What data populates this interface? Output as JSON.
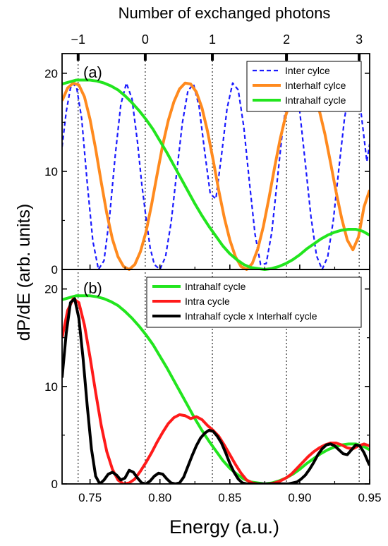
{
  "figure": {
    "top_axis_label": "Number of exchanged photons",
    "y_axis_label": "dP/dE (arb. units)",
    "x_axis_label": "Energy (a.u.)",
    "top_ticks": [
      {
        "label": "−1",
        "energy": 0.7415
      },
      {
        "label": "0",
        "energy": 0.7895
      },
      {
        "label": "1",
        "energy": 0.8375
      },
      {
        "label": "2",
        "energy": 0.8905
      },
      {
        "label": "3",
        "energy": 0.9425
      }
    ],
    "x_ticks": [
      "0.75",
      "0.80",
      "0.85",
      "0.90",
      "0.95"
    ],
    "y_ticks": [
      "0",
      "10",
      "20"
    ]
  },
  "chart_data": [
    {
      "type": "line",
      "panel_label": "(a)",
      "xlim": [
        0.73,
        0.95
      ],
      "ylim": [
        0,
        22
      ],
      "legend_placement": "top-right",
      "series": [
        {
          "name": "Inter cylce",
          "color": "#1a1aff",
          "style": "dashed",
          "x": [
            0.73,
            0.733,
            0.736,
            0.74,
            0.744,
            0.748,
            0.752,
            0.756,
            0.76,
            0.764,
            0.768,
            0.772,
            0.776,
            0.78,
            0.784,
            0.787,
            0.79,
            0.793,
            0.796,
            0.8,
            0.804,
            0.808,
            0.812,
            0.816,
            0.82,
            0.824,
            0.828,
            0.832,
            0.836,
            0.84,
            0.844,
            0.848,
            0.852,
            0.856,
            0.86,
            0.864,
            0.868,
            0.872,
            0.876,
            0.88,
            0.884,
            0.888,
            0.892,
            0.896,
            0.9,
            0.904,
            0.908,
            0.912,
            0.916,
            0.92,
            0.924,
            0.928,
            0.932,
            0.936,
            0.94,
            0.944,
            0.948,
            0.95
          ],
          "y": [
            12.5,
            16.1,
            18.5,
            18.9,
            15.4,
            8.8,
            2.9,
            0.0,
            0.9,
            5.4,
            11.6,
            16.8,
            19.0,
            17.4,
            12.9,
            8.7,
            5.3,
            2.2,
            0.5,
            0.0,
            1.3,
            4.8,
            9.9,
            14.9,
            18.2,
            18.9,
            16.6,
            12.0,
            7.7,
            7.2,
            11.6,
            16.4,
            19.0,
            18.3,
            14.5,
            8.9,
            3.6,
            0.5,
            0.6,
            3.8,
            9.2,
            14.6,
            18.3,
            18.9,
            16.1,
            10.8,
            5.4,
            1.4,
            0.0,
            1.3,
            5.0,
            10.3,
            15.4,
            18.6,
            18.7,
            15.8,
            11.0,
            12.8
          ]
        },
        {
          "name": "Interhalf cylce",
          "color": "#ff8a1e",
          "style": "solid",
          "x": [
            0.73,
            0.734,
            0.738,
            0.742,
            0.746,
            0.75,
            0.754,
            0.758,
            0.762,
            0.766,
            0.77,
            0.774,
            0.778,
            0.782,
            0.786,
            0.79,
            0.794,
            0.798,
            0.802,
            0.806,
            0.81,
            0.814,
            0.818,
            0.822,
            0.826,
            0.83,
            0.834,
            0.838,
            0.842,
            0.846,
            0.85,
            0.854,
            0.858,
            0.862,
            0.866,
            0.87,
            0.874,
            0.878,
            0.882,
            0.886,
            0.89,
            0.894,
            0.898,
            0.902,
            0.906,
            0.91,
            0.914,
            0.918,
            0.922,
            0.926,
            0.93,
            0.934,
            0.938,
            0.942,
            0.946,
            0.95
          ],
          "y": [
            17.2,
            18.5,
            19.0,
            18.8,
            17.6,
            15.3,
            12.3,
            8.9,
            5.7,
            3.1,
            1.3,
            0.3,
            0.0,
            0.5,
            1.8,
            3.8,
            6.6,
            9.7,
            12.7,
            15.2,
            17.1,
            18.4,
            19.0,
            18.9,
            18.1,
            16.5,
            14.1,
            11.2,
            8.1,
            5.3,
            3.0,
            1.3,
            0.3,
            0.0,
            0.6,
            2.1,
            4.4,
            7.3,
            10.4,
            13.3,
            15.7,
            17.5,
            18.6,
            19.0,
            18.8,
            17.9,
            16.2,
            13.8,
            10.9,
            7.9,
            5.2,
            3.0,
            2.0,
            3.3,
            6.4,
            8.1
          ]
        },
        {
          "name": "Intrahalf cycle",
          "color": "#22e51e",
          "style": "solid",
          "x": [
            0.73,
            0.735,
            0.74,
            0.745,
            0.75,
            0.755,
            0.76,
            0.765,
            0.77,
            0.775,
            0.78,
            0.785,
            0.79,
            0.795,
            0.8,
            0.805,
            0.81,
            0.815,
            0.82,
            0.825,
            0.83,
            0.835,
            0.84,
            0.845,
            0.85,
            0.855,
            0.86,
            0.865,
            0.87,
            0.875,
            0.88,
            0.885,
            0.89,
            0.895,
            0.9,
            0.905,
            0.91,
            0.915,
            0.92,
            0.925,
            0.93,
            0.935,
            0.94,
            0.945,
            0.95
          ],
          "y": [
            18.9,
            19.1,
            19.3,
            19.3,
            19.3,
            19.2,
            19.0,
            18.7,
            18.3,
            17.7,
            17.0,
            16.2,
            15.3,
            14.3,
            13.1,
            11.9,
            10.6,
            9.3,
            8.0,
            6.7,
            5.5,
            4.4,
            3.4,
            2.4,
            1.6,
            1.0,
            0.5,
            0.2,
            0.1,
            0.0,
            0.1,
            0.3,
            0.6,
            1.0,
            1.5,
            2.1,
            2.6,
            3.1,
            3.5,
            3.8,
            4.0,
            4.1,
            4.1,
            3.9,
            3.5
          ]
        }
      ]
    },
    {
      "type": "line",
      "panel_label": "(b)",
      "xlim": [
        0.73,
        0.95
      ],
      "ylim": [
        0,
        22
      ],
      "legend_placement": "top-right",
      "series": [
        {
          "name": "Intrahalf cycle",
          "color": "#22e51e",
          "style": "solid",
          "x": [
            0.73,
            0.735,
            0.74,
            0.745,
            0.75,
            0.755,
            0.76,
            0.765,
            0.77,
            0.775,
            0.78,
            0.785,
            0.79,
            0.795,
            0.8,
            0.805,
            0.81,
            0.815,
            0.82,
            0.825,
            0.83,
            0.835,
            0.84,
            0.845,
            0.85,
            0.855,
            0.86,
            0.865,
            0.87,
            0.875,
            0.88,
            0.885,
            0.89,
            0.895,
            0.9,
            0.905,
            0.91,
            0.915,
            0.92,
            0.925,
            0.93,
            0.935,
            0.94,
            0.945,
            0.95
          ],
          "y": [
            18.9,
            19.1,
            19.3,
            19.3,
            19.3,
            19.2,
            19.0,
            18.7,
            18.3,
            17.7,
            17.0,
            16.2,
            15.3,
            14.3,
            13.1,
            11.9,
            10.6,
            9.3,
            8.0,
            6.7,
            5.5,
            4.4,
            3.4,
            2.4,
            1.6,
            1.0,
            0.5,
            0.2,
            0.1,
            0.0,
            0.1,
            0.3,
            0.6,
            1.0,
            1.5,
            2.1,
            2.6,
            3.1,
            3.5,
            3.8,
            4.0,
            4.1,
            4.1,
            3.9,
            3.5
          ]
        },
        {
          "name": "Intra cycle",
          "color": "#ff1a1a",
          "style": "solid",
          "x": [
            0.73,
            0.734,
            0.738,
            0.742,
            0.746,
            0.75,
            0.754,
            0.758,
            0.762,
            0.766,
            0.77,
            0.774,
            0.778,
            0.782,
            0.786,
            0.79,
            0.794,
            0.798,
            0.802,
            0.806,
            0.81,
            0.814,
            0.818,
            0.822,
            0.826,
            0.83,
            0.834,
            0.838,
            0.842,
            0.846,
            0.85,
            0.854,
            0.858,
            0.862,
            0.866,
            0.87,
            0.874,
            0.878,
            0.882,
            0.886,
            0.89,
            0.894,
            0.898,
            0.902,
            0.906,
            0.91,
            0.914,
            0.918,
            0.922,
            0.926,
            0.93,
            0.934,
            0.938,
            0.942,
            0.946,
            0.95
          ],
          "y": [
            15.0,
            17.8,
            19.0,
            18.6,
            16.3,
            13.0,
            9.4,
            6.0,
            3.3,
            1.5,
            0.4,
            0.0,
            0.1,
            0.5,
            1.3,
            2.2,
            3.2,
            4.3,
            5.3,
            6.2,
            6.8,
            7.1,
            7.0,
            6.7,
            6.9,
            6.6,
            6.0,
            5.5,
            4.9,
            4.0,
            3.0,
            2.0,
            1.1,
            0.4,
            0.1,
            0.0,
            0.0,
            0.0,
            0.1,
            0.3,
            0.6,
            1.0,
            1.6,
            2.2,
            2.8,
            3.3,
            3.7,
            4.0,
            4.2,
            4.2,
            4.0,
            3.7,
            3.6,
            3.9,
            4.1,
            3.9
          ]
        },
        {
          "name": "Intrahalf cycle x Interhalf cycle",
          "color": "#000000",
          "style": "solid",
          "x": [
            0.73,
            0.733,
            0.736,
            0.739,
            0.742,
            0.745,
            0.748,
            0.751,
            0.754,
            0.757,
            0.76,
            0.763,
            0.766,
            0.769,
            0.772,
            0.775,
            0.778,
            0.781,
            0.784,
            0.787,
            0.79,
            0.793,
            0.796,
            0.799,
            0.802,
            0.805,
            0.808,
            0.811,
            0.814,
            0.817,
            0.82,
            0.823,
            0.826,
            0.829,
            0.832,
            0.835,
            0.838,
            0.841,
            0.844,
            0.847,
            0.85,
            0.853,
            0.856,
            0.859,
            0.862,
            0.865,
            0.868,
            0.871,
            0.874,
            0.877,
            0.88,
            0.883,
            0.886,
            0.889,
            0.892,
            0.895,
            0.898,
            0.901,
            0.904,
            0.907,
            0.91,
            0.913,
            0.916,
            0.919,
            0.922,
            0.925,
            0.928,
            0.931,
            0.934,
            0.937,
            0.94,
            0.943,
            0.946,
            0.949,
            0.95
          ],
          "y": [
            10.9,
            15.5,
            18.6,
            19.0,
            17.0,
            12.9,
            8.0,
            3.6,
            0.8,
            0.0,
            0.4,
            1.0,
            1.2,
            0.9,
            0.4,
            0.6,
            1.4,
            1.2,
            0.6,
            0.1,
            0.0,
            0.3,
            0.8,
            1.1,
            1.0,
            0.5,
            0.1,
            0.0,
            0.1,
            0.7,
            1.8,
            2.9,
            3.9,
            4.7,
            5.2,
            5.5,
            5.4,
            4.9,
            4.2,
            3.2,
            2.1,
            1.2,
            0.5,
            0.1,
            0.0,
            0.0,
            0.0,
            0.0,
            0.0,
            0.0,
            0.0,
            0.0,
            0.0,
            0.0,
            0.0,
            0.1,
            0.2,
            0.5,
            0.9,
            1.5,
            2.2,
            3.0,
            3.6,
            4.0,
            4.1,
            3.9,
            3.5,
            3.1,
            3.0,
            3.5,
            4.0,
            3.9,
            3.2,
            2.2,
            1.9
          ]
        }
      ]
    }
  ]
}
